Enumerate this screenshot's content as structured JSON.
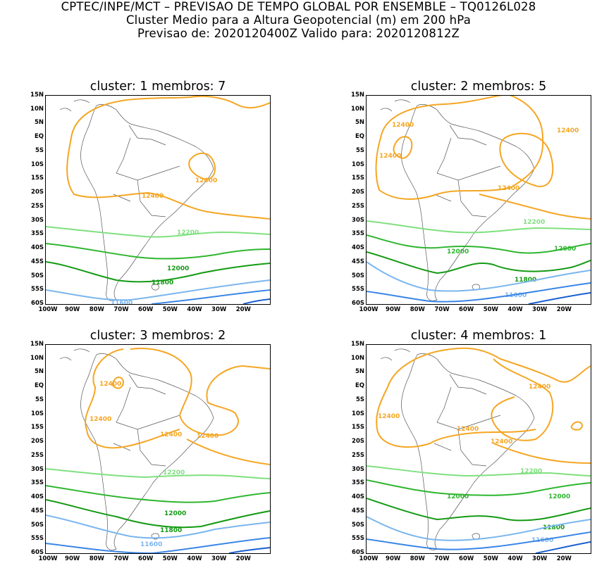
{
  "header": {
    "line1": "CPTEC/INPE/MCT – PREVISAO DE TEMPO GLOBAL POR ENSEMBLE – TQ0126L028",
    "line2": "Cluster Medio para a Altura Geopotencial (m) em 200 hPa",
    "line3": "Previsao de: 2020120400Z    Valido para: 2020120812Z"
  },
  "axes": {
    "lat_labels": [
      "15N",
      "10N",
      "5N",
      "EQ",
      "5S",
      "10S",
      "15S",
      "20S",
      "25S",
      "30S",
      "35S",
      "40S",
      "45S",
      "50S",
      "55S",
      "60S"
    ],
    "lon_labels": [
      "100W",
      "90W",
      "80W",
      "70W",
      "60W",
      "50W",
      "40W",
      "30W",
      "20W"
    ]
  },
  "colors": {
    "c12400": "#f5a623",
    "c12200": "#7fe07f",
    "c12000": "#2fb62f",
    "c11800": "#149a14",
    "c11600": "#7ab6ee",
    "c11500": "#3a86e6",
    "c11400": "#1a5fd0"
  },
  "panels": [
    {
      "title": "cluster: 1   membros: 7",
      "labels": {
        "l12400a": "12400",
        "l12400b": "12400",
        "l12200": "12200",
        "l12000": "12000",
        "l11800": "11800",
        "l11600": "11600"
      }
    },
    {
      "title": "cluster: 2   membros: 5",
      "labels": {
        "l12400a": "12400",
        "l12400b": "12400",
        "l12400c": "12400",
        "l12400d": "12400",
        "l12200": "12200",
        "l12000a": "12000",
        "l12000b": "12000",
        "l11800": "11800",
        "l11600": "11600"
      }
    },
    {
      "title": "cluster: 3   membros: 2",
      "labels": {
        "l12400a": "12400",
        "l12400b": "12400",
        "l12400c": "12400",
        "l12400d": "12400",
        "l12200": "12200",
        "l12000": "12000",
        "l11800": "11800",
        "l11600": "11600"
      }
    },
    {
      "title": "cluster: 4   membros: 1",
      "labels": {
        "l12400a": "12400",
        "l12400b": "12400",
        "l12400c": "12400",
        "l12400d": "12400",
        "l12200": "12200",
        "l12000a": "12000",
        "l12000b": "12000",
        "l11800": "11800",
        "l11600": "11600"
      }
    }
  ]
}
